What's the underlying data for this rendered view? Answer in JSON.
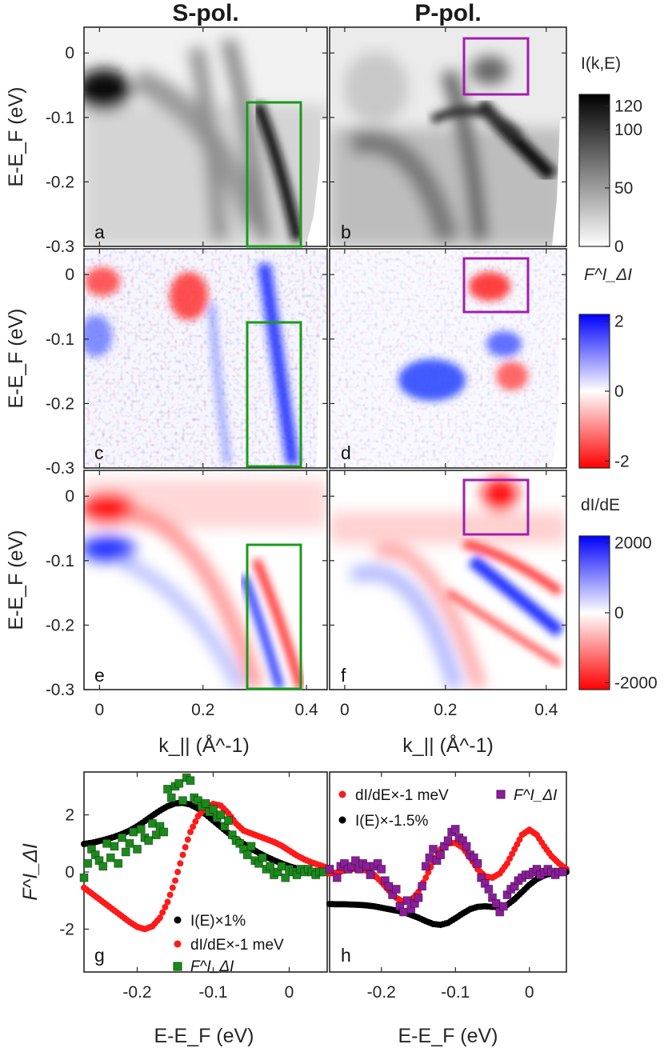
{
  "columns": {
    "left_title": "S-pol.",
    "right_title": "P-pol."
  },
  "ylabel_image": "E-E_F (eV)",
  "xlabel_k": "k_|| (Å^-1)",
  "xlabel_e": "E-E_F (eV)",
  "ylabel_g": "F^I_ΔI",
  "panel_labels": [
    "a",
    "b",
    "c",
    "d",
    "e",
    "f",
    "g",
    "h"
  ],
  "colors": {
    "green_box": "#1a9a1a",
    "purple_box": "#a21caf",
    "blue": "#1e3cff",
    "red": "#ff1a1a",
    "black": "#000000",
    "green_marker": "#1a8a1a",
    "purple_marker": "#8b1d9a"
  },
  "colorbars": [
    {
      "label": "I(k,E)",
      "ticks": [
        "120",
        "100",
        "50",
        "0"
      ],
      "tick_values": [
        120,
        100,
        50,
        0
      ],
      "range": [
        0,
        130
      ],
      "cmap": "gray"
    },
    {
      "label": "F^I_ΔI",
      "ticks": [
        "2",
        "0",
        "-2"
      ],
      "tick_values": [
        2,
        0,
        -2
      ],
      "range": [
        -2.2,
        2.2
      ],
      "cmap": "bwr"
    },
    {
      "label": "dI/dE",
      "ticks": [
        "2000",
        "0",
        "-2000"
      ],
      "tick_values": [
        2000,
        0,
        -2000
      ],
      "range": [
        -2200,
        2200
      ],
      "cmap": "bwr"
    }
  ],
  "chart_data": [
    {
      "type": "heatmap",
      "panels": [
        "a",
        "b",
        "c",
        "d",
        "e",
        "f"
      ],
      "xlim": [
        -0.03,
        0.44
      ],
      "ylim": [
        -0.3,
        0.04
      ],
      "xticks": [
        0,
        0.2,
        0.4
      ],
      "xticklabels": [
        "0",
        "0.2",
        "0.4"
      ],
      "yticks": [
        0,
        -0.1,
        -0.2,
        -0.3
      ],
      "yticklabels": [
        "0",
        "-0.1",
        "-0.2",
        "-0.3"
      ],
      "green_box": {
        "k": [
          0.285,
          0.385
        ],
        "E": [
          -0.3,
          -0.075
        ]
      },
      "purple_box": {
        "k": [
          0.225,
          0.345
        ],
        "E": [
          -0.06,
          0.03
        ]
      }
    },
    {
      "type": "scatter",
      "panel": "g",
      "xlabel": "E-E_F (eV)",
      "ylabel": "F^I_ΔI",
      "xlim": [
        -0.27,
        0.05
      ],
      "ylim": [
        -3.5,
        3.5
      ],
      "xticks": [
        -0.2,
        -0.1,
        0
      ],
      "xticklabels": [
        "-0.2",
        "-0.1",
        "0"
      ],
      "yticks": [
        -2,
        0,
        2
      ],
      "yticklabels": [
        "-2",
        "0",
        "2"
      ],
      "legend": [
        "I(E)×1%",
        "dI/dE×-1 meV",
        "F^I_ΔI"
      ],
      "series": [
        {
          "name": "I(E)×1%",
          "color": "#000000",
          "marker": "circle",
          "x": [
            -0.27,
            -0.26,
            -0.25,
            -0.24,
            -0.23,
            -0.22,
            -0.21,
            -0.2,
            -0.19,
            -0.18,
            -0.17,
            -0.16,
            -0.15,
            -0.14,
            -0.13,
            -0.12,
            -0.11,
            -0.1,
            -0.09,
            -0.08,
            -0.07,
            -0.06,
            -0.05,
            -0.04,
            -0.03,
            -0.02,
            -0.01,
            0,
            0.01,
            0.02,
            0.03,
            0.04,
            0.05
          ],
          "y": [
            0.98,
            1.02,
            1.08,
            1.15,
            1.23,
            1.33,
            1.45,
            1.6,
            1.78,
            1.97,
            2.15,
            2.3,
            2.4,
            2.42,
            2.36,
            2.22,
            2.02,
            1.8,
            1.58,
            1.36,
            1.16,
            0.98,
            0.82,
            0.67,
            0.53,
            0.41,
            0.3,
            0.2,
            0.12,
            0.06,
            0.02,
            0.0,
            -0.01
          ]
        },
        {
          "name": "dI/dE×-1 meV",
          "color": "#ff1a1a",
          "marker": "circle",
          "x": [
            -0.27,
            -0.26,
            -0.25,
            -0.24,
            -0.23,
            -0.22,
            -0.21,
            -0.2,
            -0.19,
            -0.18,
            -0.17,
            -0.16,
            -0.15,
            -0.14,
            -0.13,
            -0.12,
            -0.11,
            -0.1,
            -0.09,
            -0.08,
            -0.07,
            -0.06,
            -0.05,
            -0.04,
            -0.03,
            -0.02,
            -0.01,
            0,
            0.01,
            0.02,
            0.03,
            0.04,
            0.05
          ],
          "y": [
            -0.55,
            -0.75,
            -0.95,
            -1.15,
            -1.35,
            -1.55,
            -1.75,
            -1.92,
            -2.0,
            -1.9,
            -1.6,
            -1.05,
            -0.3,
            0.6,
            1.4,
            1.95,
            2.25,
            2.38,
            2.32,
            2.05,
            1.7,
            1.45,
            1.35,
            1.25,
            1.15,
            1.05,
            0.92,
            0.75,
            0.58,
            0.44,
            0.33,
            0.24,
            0.15
          ]
        },
        {
          "name": "F^I_ΔI",
          "color": "#1a8a1a",
          "marker": "square",
          "x": [
            -0.27,
            -0.265,
            -0.26,
            -0.255,
            -0.25,
            -0.245,
            -0.24,
            -0.235,
            -0.23,
            -0.225,
            -0.22,
            -0.215,
            -0.21,
            -0.205,
            -0.2,
            -0.195,
            -0.19,
            -0.185,
            -0.18,
            -0.175,
            -0.17,
            -0.165,
            -0.16,
            -0.155,
            -0.15,
            -0.145,
            -0.14,
            -0.135,
            -0.13,
            -0.125,
            -0.12,
            -0.115,
            -0.11,
            -0.105,
            -0.1,
            -0.095,
            -0.09,
            -0.085,
            -0.08,
            -0.075,
            -0.07,
            -0.065,
            -0.06,
            -0.055,
            -0.05,
            -0.045,
            -0.04,
            -0.035,
            -0.03,
            -0.025,
            -0.02,
            -0.015,
            -0.01,
            -0.005,
            0,
            0.005,
            0.01,
            0.015,
            0.02,
            0.025,
            0.03,
            0.035,
            0.04,
            0.045
          ],
          "y": [
            -0.2,
            0.3,
            0.8,
            0.6,
            0.4,
            0.2,
            1.0,
            0.5,
            0.9,
            0.3,
            1.2,
            0.7,
            1.0,
            1.4,
            0.8,
            1.5,
            1.2,
            1.1,
            1.7,
            1.3,
            1.6,
            1.4,
            2.9,
            2.6,
            3.0,
            3.1,
            2.5,
            3.3,
            3.2,
            2.6,
            2.5,
            2.3,
            2.4,
            2.1,
            2.2,
            1.9,
            2.0,
            1.6,
            1.8,
            1.3,
            1.1,
            1.0,
            0.8,
            0.6,
            0.9,
            0.4,
            0.3,
            0.5,
            0.1,
            0.2,
            -0.1,
            0.0,
            0.2,
            -0.2,
            0.1,
            0.0,
            -0.1,
            0.1,
            0.0,
            0.1,
            0.0,
            -0.1,
            0.0,
            0.0
          ]
        }
      ]
    },
    {
      "type": "scatter",
      "panel": "h",
      "xlabel": "E-E_F (eV)",
      "xlim": [
        -0.27,
        0.05
      ],
      "ylim": [
        -3.5,
        3.5
      ],
      "xticks": [
        -0.2,
        -0.1,
        0
      ],
      "xticklabels": [
        "-0.2",
        "-0.1",
        "0"
      ],
      "legend": [
        "dI/dE×-1 meV",
        "I(E)×-1.5%",
        "F^I_ΔI"
      ],
      "series": [
        {
          "name": "dI/dE×-1 meV",
          "color": "#ff1a1a",
          "marker": "circle",
          "x": [
            -0.27,
            -0.26,
            -0.25,
            -0.24,
            -0.23,
            -0.22,
            -0.21,
            -0.2,
            -0.19,
            -0.18,
            -0.17,
            -0.16,
            -0.15,
            -0.14,
            -0.13,
            -0.12,
            -0.11,
            -0.1,
            -0.09,
            -0.08,
            -0.07,
            -0.06,
            -0.05,
            -0.04,
            -0.03,
            -0.02,
            -0.01,
            0,
            0.01,
            0.02,
            0.03,
            0.04,
            0.05
          ],
          "y": [
            -0.05,
            -0.02,
            0.05,
            0.1,
            0.12,
            0.05,
            -0.1,
            -0.35,
            -0.65,
            -0.9,
            -1.05,
            -1.0,
            -0.7,
            -0.2,
            0.35,
            0.8,
            1.0,
            1.02,
            0.85,
            0.5,
            0.1,
            -0.15,
            -0.2,
            -0.05,
            0.3,
            0.8,
            1.3,
            1.48,
            1.3,
            0.9,
            0.55,
            0.3,
            0.1
          ]
        },
        {
          "name": "I(E)×-1.5%",
          "color": "#000000",
          "marker": "circle",
          "x": [
            -0.27,
            -0.26,
            -0.25,
            -0.24,
            -0.23,
            -0.22,
            -0.21,
            -0.2,
            -0.19,
            -0.18,
            -0.17,
            -0.16,
            -0.15,
            -0.14,
            -0.13,
            -0.12,
            -0.11,
            -0.1,
            -0.09,
            -0.08,
            -0.07,
            -0.06,
            -0.05,
            -0.04,
            -0.03,
            -0.02,
            -0.01,
            0,
            0.01,
            0.02,
            0.03,
            0.04,
            0.05
          ],
          "y": [
            -1.12,
            -1.13,
            -1.13,
            -1.14,
            -1.15,
            -1.17,
            -1.2,
            -1.25,
            -1.3,
            -1.35,
            -1.4,
            -1.5,
            -1.6,
            -1.72,
            -1.82,
            -1.85,
            -1.78,
            -1.62,
            -1.45,
            -1.3,
            -1.22,
            -1.2,
            -1.22,
            -1.22,
            -1.15,
            -0.95,
            -0.7,
            -0.45,
            -0.25,
            -0.12,
            -0.05,
            -0.02,
            0.0
          ]
        },
        {
          "name": "F^I_ΔI",
          "color": "#8b1d9a",
          "marker": "square",
          "x": [
            -0.27,
            -0.26,
            -0.255,
            -0.25,
            -0.245,
            -0.24,
            -0.235,
            -0.23,
            -0.225,
            -0.22,
            -0.215,
            -0.21,
            -0.205,
            -0.2,
            -0.195,
            -0.19,
            -0.185,
            -0.18,
            -0.175,
            -0.17,
            -0.165,
            -0.16,
            -0.155,
            -0.15,
            -0.145,
            -0.14,
            -0.135,
            -0.13,
            -0.125,
            -0.12,
            -0.115,
            -0.11,
            -0.105,
            -0.1,
            -0.095,
            -0.09,
            -0.085,
            -0.08,
            -0.075,
            -0.07,
            -0.065,
            -0.06,
            -0.055,
            -0.05,
            -0.045,
            -0.04,
            -0.035,
            -0.03,
            -0.025,
            -0.02,
            -0.015,
            -0.01,
            -0.005,
            0,
            0.005,
            0.01,
            0.015,
            0.02,
            0.025,
            0.03,
            0.035,
            0.04,
            0.045
          ],
          "y": [
            0.1,
            -0.2,
            0.2,
            0.3,
            0.1,
            0.2,
            0.4,
            0.1,
            0.3,
            0.2,
            -0.1,
            0.2,
            0.3,
            0.1,
            -0.3,
            -0.5,
            -0.8,
            -0.6,
            -1.2,
            -1.4,
            -1.0,
            -1.3,
            -1.1,
            -0.9,
            -0.5,
            0.2,
            0.5,
            0.8,
            0.4,
            0.6,
            0.9,
            1.1,
            1.4,
            1.5,
            1.2,
            1.1,
            0.9,
            0.6,
            0.5,
            0.3,
            -0.2,
            -0.4,
            -0.6,
            -0.9,
            -1.1,
            -1.4,
            -1.2,
            -0.8,
            -0.6,
            -0.5,
            -0.3,
            -0.2,
            -0.1,
            -0.1,
            0.0,
            0.1,
            -0.1,
            0.0,
            0.1,
            0.0,
            -0.1,
            0.0,
            0.0
          ]
        }
      ]
    }
  ]
}
